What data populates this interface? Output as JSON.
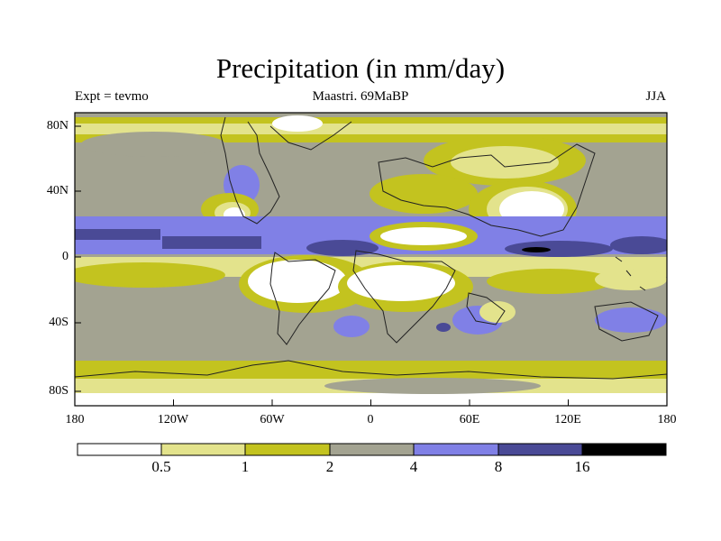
{
  "title": "Precipitation (in mm/day)",
  "subtitle": {
    "left": "Expt = tevmo",
    "center": "Maastri.  69MaBP",
    "right": "JJA"
  },
  "axes": {
    "lat_labels": [
      "80N",
      "40N",
      "0",
      "40S",
      "80S"
    ],
    "lon_labels": [
      "180",
      "120W",
      "60W",
      "0",
      "60E",
      "120E",
      "180"
    ]
  },
  "colorbar": {
    "levels": [
      "0.5",
      "1",
      "2",
      "4",
      "8",
      "16"
    ],
    "colors": [
      "#ffffff",
      "#e3e38c",
      "#c3c31f",
      "#a3a391",
      "#8080e6",
      "#4a4a96",
      "#000000"
    ]
  },
  "palette": {
    "white": "#ffffff",
    "light_yellow": "#e3e38c",
    "olive": "#c3c31f",
    "gray": "#a3a391",
    "blue": "#8080e6",
    "dark_blue": "#4a4a96",
    "black": "#000000",
    "coast": "#222222"
  }
}
